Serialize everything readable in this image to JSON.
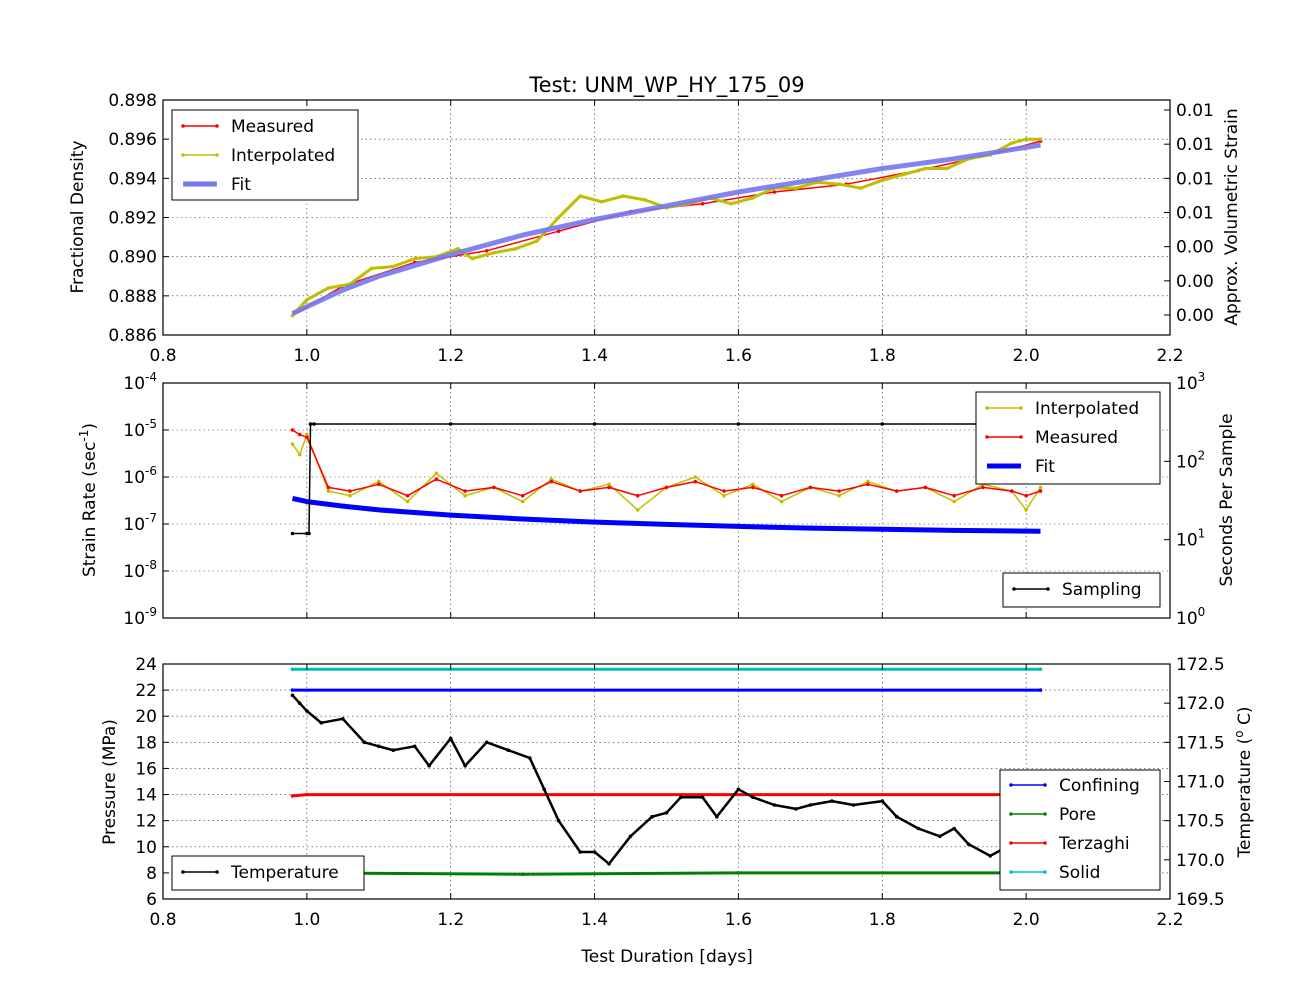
{
  "chart_data": [
    {
      "type": "line",
      "title": "Test: UNM_WP_HY_175_09",
      "xlabel": "",
      "ylabel": "Fractional Density",
      "ylabel_right": "Approx. Volumetric Strain",
      "xlim": [
        0.8,
        2.2
      ],
      "ylim": [
        0.886,
        0.898
      ],
      "xticks": [
        "0.8",
        "1.0",
        "1.2",
        "1.4",
        "1.6",
        "1.8",
        "2.0",
        "2.2"
      ],
      "yticks": [
        "0.886",
        "0.888",
        "0.890",
        "0.892",
        "0.894",
        "0.896",
        "0.898"
      ],
      "yticks_right": [
        "0.00",
        "0.00",
        "0.00",
        "0.01",
        "0.01",
        "0.01",
        "0.01"
      ],
      "grid": true,
      "legend_position": "upper-left",
      "series": [
        {
          "name": "Measured",
          "color": "#ff0000",
          "x": [
            0.98,
            1.05,
            1.15,
            1.25,
            1.35,
            1.45,
            1.55,
            1.65,
            1.75,
            1.85,
            1.95,
            2.02
          ],
          "y": [
            0.887,
            0.8885,
            0.8897,
            0.8903,
            0.8913,
            0.8923,
            0.8927,
            0.8933,
            0.8937,
            0.8944,
            0.8952,
            0.8959
          ]
        },
        {
          "name": "Interpolated",
          "color": "#bfbf00",
          "x": [
            0.98,
            1.0,
            1.03,
            1.06,
            1.09,
            1.12,
            1.15,
            1.18,
            1.21,
            1.23,
            1.26,
            1.29,
            1.32,
            1.35,
            1.38,
            1.41,
            1.44,
            1.47,
            1.5,
            1.53,
            1.56,
            1.59,
            1.62,
            1.65,
            1.68,
            1.71,
            1.74,
            1.77,
            1.8,
            1.83,
            1.86,
            1.89,
            1.92,
            1.95,
            1.98,
            2.0,
            2.02
          ],
          "y": [
            0.887,
            0.8878,
            0.8884,
            0.8886,
            0.8894,
            0.8895,
            0.8899,
            0.89,
            0.8904,
            0.8899,
            0.8902,
            0.8904,
            0.8908,
            0.892,
            0.8931,
            0.8928,
            0.8931,
            0.8929,
            0.8925,
            0.8927,
            0.893,
            0.8927,
            0.893,
            0.8935,
            0.8935,
            0.8938,
            0.8937,
            0.8935,
            0.8939,
            0.8942,
            0.8945,
            0.8945,
            0.895,
            0.8952,
            0.8958,
            0.896,
            0.896
          ]
        },
        {
          "name": "Fit",
          "color": "#7777ee",
          "x": [
            0.98,
            1.05,
            1.1,
            1.2,
            1.3,
            1.4,
            1.5,
            1.6,
            1.7,
            1.8,
            1.9,
            2.02
          ],
          "y": [
            0.8871,
            0.8883,
            0.889,
            0.8901,
            0.8911,
            0.8919,
            0.8926,
            0.8933,
            0.8939,
            0.8945,
            0.895,
            0.8957
          ]
        }
      ]
    },
    {
      "type": "line",
      "title": "",
      "xlabel": "",
      "ylabel": "Strain Rate (sec",
      "ylabel_sup": "-1",
      "ylabel_end": ")",
      "ylabel_right": "Seconds Per Sample",
      "xlim": [
        0.8,
        2.2
      ],
      "yscale": "log",
      "ylim": [
        1e-09,
        0.0001
      ],
      "ylim_right": [
        1,
        1000
      ],
      "yticks": [
        {
          "base": "10",
          "exp": "-9"
        },
        {
          "base": "10",
          "exp": "-8"
        },
        {
          "base": "10",
          "exp": "-7"
        },
        {
          "base": "10",
          "exp": "-6"
        },
        {
          "base": "10",
          "exp": "-5"
        },
        {
          "base": "10",
          "exp": "-4"
        }
      ],
      "yticks_right": [
        {
          "base": "10",
          "exp": "0"
        },
        {
          "base": "10",
          "exp": "1"
        },
        {
          "base": "10",
          "exp": "2"
        },
        {
          "base": "10",
          "exp": "3"
        }
      ],
      "grid": true,
      "legend_position": "upper-right",
      "legend2_position": "lower-right",
      "series": [
        {
          "name": "Interpolated",
          "color": "#bfbf00",
          "x": [
            0.98,
            0.99,
            1.0,
            1.03,
            1.06,
            1.1,
            1.14,
            1.18,
            1.22,
            1.26,
            1.3,
            1.34,
            1.38,
            1.42,
            1.46,
            1.5,
            1.54,
            1.58,
            1.62,
            1.66,
            1.7,
            1.74,
            1.78,
            1.82,
            1.86,
            1.9,
            1.94,
            1.98,
            2.0,
            2.02
          ],
          "y": [
            5e-06,
            3e-06,
            8e-06,
            5e-07,
            4e-07,
            8e-07,
            3e-07,
            1.2e-06,
            4e-07,
            6e-07,
            3e-07,
            9e-07,
            5e-07,
            7e-07,
            2e-07,
            6e-07,
            1e-06,
            4e-07,
            7e-07,
            3e-07,
            6e-07,
            4e-07,
            8e-07,
            5e-07,
            6e-07,
            3e-07,
            7e-07,
            5e-07,
            2e-07,
            6e-07
          ]
        },
        {
          "name": "Measured",
          "color": "#ff0000",
          "x": [
            0.98,
            0.99,
            1.0,
            1.03,
            1.06,
            1.1,
            1.14,
            1.18,
            1.22,
            1.26,
            1.3,
            1.34,
            1.38,
            1.42,
            1.46,
            1.5,
            1.54,
            1.58,
            1.62,
            1.66,
            1.7,
            1.74,
            1.78,
            1.82,
            1.86,
            1.9,
            1.94,
            1.98,
            2.0,
            2.02
          ],
          "y": [
            1e-05,
            8e-06,
            7e-06,
            6e-07,
            5e-07,
            7e-07,
            4e-07,
            9e-07,
            5e-07,
            6e-07,
            4e-07,
            8e-07,
            5e-07,
            6e-07,
            4e-07,
            6e-07,
            8e-07,
            5e-07,
            6e-07,
            4e-07,
            6e-07,
            5e-07,
            7e-07,
            5e-07,
            6e-07,
            4e-07,
            6e-07,
            5e-07,
            4e-07,
            5e-07
          ]
        },
        {
          "name": "Fit",
          "color": "#0000ff",
          "x": [
            0.98,
            1.0,
            1.05,
            1.1,
            1.2,
            1.3,
            1.4,
            1.5,
            1.6,
            1.7,
            1.8,
            1.9,
            2.02
          ],
          "y": [
            3.5e-07,
            3e-07,
            2.4e-07,
            2e-07,
            1.55e-07,
            1.28e-07,
            1.1e-07,
            9.8e-08,
            8.9e-08,
            8.2e-08,
            7.7e-08,
            7.3e-08,
            7e-08
          ]
        },
        {
          "name": "Sampling",
          "color": "#000000",
          "axis": "right",
          "x": [
            0.98,
            1.0,
            1.003,
            1.005,
            1.01,
            1.2,
            1.4,
            1.6,
            1.8,
            2.02
          ],
          "y": [
            12,
            12,
            12,
            300,
            300,
            300,
            300,
            300,
            300,
            300
          ]
        }
      ]
    },
    {
      "type": "line",
      "title": "",
      "xlabel": "Test Duration [days]",
      "ylabel": "Pressure (MPa)",
      "ylabel_right": "Temperature (",
      "ylabel_right_sup": "o",
      "ylabel_right_end": " C)",
      "xlim": [
        0.8,
        2.2
      ],
      "ylim": [
        6,
        24
      ],
      "ylim_right": [
        169.5,
        172.5
      ],
      "xticks": [
        "0.8",
        "1.0",
        "1.2",
        "1.4",
        "1.6",
        "1.8",
        "2.0",
        "2.2"
      ],
      "yticks": [
        "6",
        "8",
        "10",
        "12",
        "14",
        "16",
        "18",
        "20",
        "22",
        "24"
      ],
      "yticks_right": [
        "169.5",
        "170.0",
        "170.5",
        "171.0",
        "171.5",
        "172.0",
        "172.5"
      ],
      "grid": true,
      "legend_position": "lower-right",
      "legend2_position": "lower-left",
      "series": [
        {
          "name": "Confining",
          "color": "#0000ff",
          "x": [
            0.98,
            2.02
          ],
          "y": [
            22.0,
            22.0
          ]
        },
        {
          "name": "Pore",
          "color": "#008000",
          "x": [
            0.98,
            1.3,
            1.6,
            2.02
          ],
          "y": [
            8.0,
            7.9,
            8.0,
            8.0
          ]
        },
        {
          "name": "Terzaghi",
          "color": "#ff0000",
          "x": [
            0.98,
            1.0,
            2.02
          ],
          "y": [
            13.9,
            14.0,
            14.0
          ]
        },
        {
          "name": "Solid",
          "color": "#00bfbf",
          "x": [
            0.98,
            2.02
          ],
          "y": [
            23.6,
            23.6
          ]
        },
        {
          "name": "Temperature",
          "color": "#000000",
          "axis": "right",
          "x": [
            0.98,
            0.99,
            1.0,
            1.02,
            1.05,
            1.08,
            1.1,
            1.12,
            1.15,
            1.17,
            1.2,
            1.22,
            1.25,
            1.28,
            1.31,
            1.33,
            1.35,
            1.38,
            1.4,
            1.42,
            1.45,
            1.48,
            1.5,
            1.52,
            1.55,
            1.57,
            1.6,
            1.62,
            1.65,
            1.68,
            1.7,
            1.73,
            1.76,
            1.8,
            1.82,
            1.85,
            1.88,
            1.9,
            1.92,
            1.95,
            1.97,
            2.0,
            2.02
          ],
          "y": [
            172.1,
            172.0,
            171.9,
            171.75,
            171.8,
            171.5,
            171.45,
            171.4,
            171.45,
            171.2,
            171.55,
            171.2,
            171.5,
            171.4,
            171.3,
            170.9,
            170.5,
            170.1,
            170.1,
            169.95,
            170.3,
            170.55,
            170.6,
            170.8,
            170.8,
            170.55,
            170.9,
            170.8,
            170.7,
            170.65,
            170.7,
            170.75,
            170.7,
            170.75,
            170.55,
            170.4,
            170.3,
            170.4,
            170.2,
            170.05,
            170.15,
            170.0,
            170.05
          ]
        }
      ]
    }
  ]
}
